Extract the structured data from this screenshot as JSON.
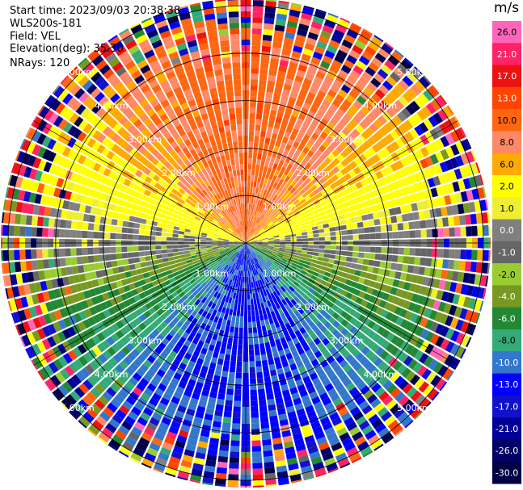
{
  "header": {
    "start_time": "Start time: 2023/09/03 20:38:38",
    "instrument": "WLS200s-181",
    "field": "Field: VEL",
    "elevation": "Elevation(deg): 35.30",
    "nrays": "NRays: 120"
  },
  "colorbar": {
    "title": "m/s",
    "entries": [
      {
        "label": "26.0",
        "color": "#ff66bb"
      },
      {
        "label": "21.0",
        "color": "#ff2266"
      },
      {
        "label": "17.0",
        "color": "#ee1111"
      },
      {
        "label": "13.0",
        "color": "#ff4400"
      },
      {
        "label": "10.0",
        "color": "#ff6611"
      },
      {
        "label": "8.0",
        "color": "#ff8866"
      },
      {
        "label": "6.0",
        "color": "#ffaa00"
      },
      {
        "label": "2.0",
        "color": "#ffff00"
      },
      {
        "label": "1.0",
        "color": "#eeee33"
      },
      {
        "label": "0.0",
        "color": "#808080"
      },
      {
        "label": "-1.0",
        "color": "#666666"
      },
      {
        "label": "-2.0",
        "color": "#99cc33"
      },
      {
        "label": "-4.0",
        "color": "#779922"
      },
      {
        "label": "-6.0",
        "color": "#228833"
      },
      {
        "label": "-8.0",
        "color": "#33aa77"
      },
      {
        "label": "-10.0",
        "color": "#3377cc"
      },
      {
        "label": "-13.0",
        "color": "#0000ff"
      },
      {
        "label": "-17.0",
        "color": "#1111cc"
      },
      {
        "label": "-21.0",
        "color": "#000099"
      },
      {
        "label": "-26.0",
        "color": "#000066"
      },
      {
        "label": "-30.0",
        "color": "#000044"
      }
    ]
  },
  "chart_data": {
    "type": "heatmap",
    "title": "",
    "field": "VEL",
    "units": "m/s",
    "nrays": 120,
    "range_rings_km": [
      1,
      2,
      3,
      4,
      5
    ],
    "ring_labels": [
      "1.00km",
      "2.00km",
      "3.00km",
      "4.00km",
      "5.00km"
    ],
    "max_range_km": 5.3,
    "vmin": -30,
    "vmax": 26,
    "description_regions": [
      {
        "sector": "north",
        "mean_velocity": 13
      },
      {
        "sector": "east-west band",
        "mean_velocity": 2
      },
      {
        "sector": "south",
        "mean_velocity": -10
      }
    ]
  }
}
